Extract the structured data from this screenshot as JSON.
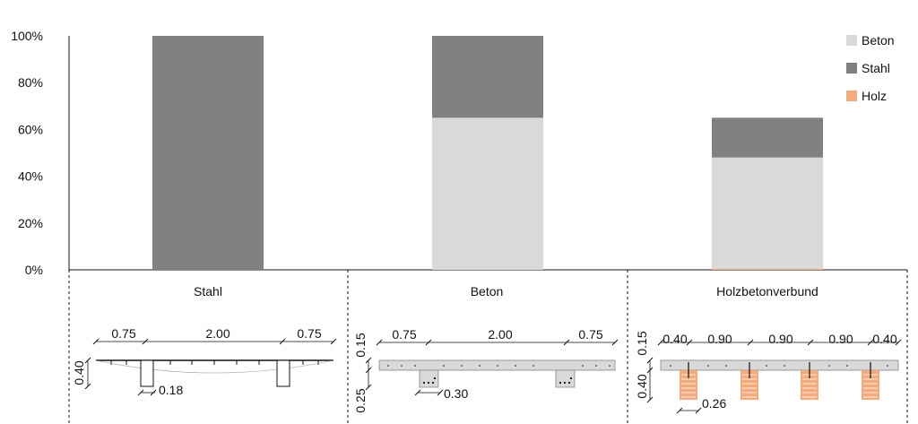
{
  "chart_data": {
    "type": "bar",
    "stacked": true,
    "categories": [
      "Stahl",
      "Beton",
      "Holzbetonverbund"
    ],
    "series": [
      {
        "name": "Holz",
        "color": "#f4aa7a",
        "values": [
          0,
          0,
          0.5
        ]
      },
      {
        "name": "Beton",
        "color": "#d9d9d9",
        "values": [
          0,
          65,
          47.5
        ]
      },
      {
        "name": "Stahl",
        "color": "#808080",
        "values": [
          100,
          35,
          17
        ]
      }
    ],
    "legend_order": [
      "Beton",
      "Stahl",
      "Holz"
    ],
    "y_ticks": [
      "0%",
      "20%",
      "40%",
      "60%",
      "80%",
      "100%"
    ],
    "ylim": [
      0,
      100
    ],
    "legend_position": "top-right",
    "grid": false
  },
  "cross_sections": {
    "stahl": {
      "label": "Stahl",
      "top_dims": [
        "0.75",
        "2.00",
        "0.75"
      ],
      "height_dim": "0.40",
      "web_dim": "0.18"
    },
    "beton": {
      "label": "Beton",
      "top_dims": [
        "0.75",
        "2.00",
        "0.75"
      ],
      "slab_dim": "0.15",
      "height_dim": "0.25",
      "web_dim": "0.30"
    },
    "hbv": {
      "label": "Holzbetonverbund",
      "top_dims": [
        "0.40",
        "0.90",
        "0.90",
        "0.90",
        "0.40"
      ],
      "slab_dim": "0.15",
      "height_dim": "0.40",
      "beam_dim": "0.26"
    }
  }
}
